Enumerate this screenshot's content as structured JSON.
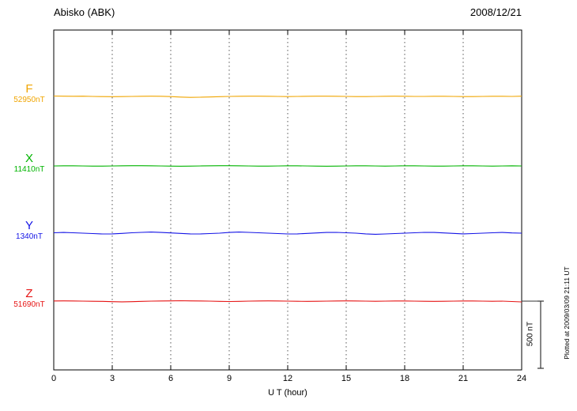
{
  "header": {
    "station": "Abisko (ABK)",
    "date": "2008/12/21"
  },
  "axis": {
    "xlabel": "U T (hour)"
  },
  "scalebar": {
    "label": "500 nT"
  },
  "footer_note": "Plotted at 2009/03/09 21:11 UT",
  "chart_data": {
    "type": "line",
    "title": "Abisko (ABK)",
    "date": "2008/12/21",
    "xlabel": "U T (hour)",
    "x_start_hour": 0,
    "x_end_hour": 24,
    "x_step_hours": 0.5,
    "x_ticks": [
      0,
      3,
      6,
      9,
      12,
      15,
      18,
      21,
      24
    ],
    "scale_bar_nT": 500,
    "grid": "dotted-vertical",
    "series": [
      {
        "name": "F",
        "baseline_label": "52950nT",
        "baseline_nT": 52950,
        "color": "#f0a500",
        "offsets_nT": [
          3,
          2,
          1,
          2,
          0,
          -1,
          -2,
          -1,
          0,
          1,
          2,
          1,
          -1,
          -5,
          -7,
          -6,
          -4,
          -2,
          0,
          1,
          2,
          2,
          1,
          0,
          -1,
          0,
          1,
          2,
          2,
          1,
          0,
          -1,
          -1,
          0,
          1,
          2,
          1,
          0,
          0,
          1,
          1,
          0,
          -1,
          -1,
          0,
          1,
          1,
          0,
          2
        ]
      },
      {
        "name": "X",
        "baseline_label": "11410nT",
        "baseline_nT": 11410,
        "color": "#00b400",
        "offsets_nT": [
          0,
          1,
          1,
          0,
          -1,
          -1,
          0,
          1,
          2,
          2,
          1,
          0,
          -1,
          -2,
          -1,
          0,
          1,
          2,
          2,
          1,
          0,
          -1,
          -1,
          0,
          1,
          1,
          0,
          -1,
          -2,
          -1,
          0,
          1,
          1,
          0,
          -1,
          0,
          1,
          1,
          0,
          -1,
          -1,
          0,
          1,
          1,
          0,
          -1,
          0,
          1,
          0
        ]
      },
      {
        "name": "Y",
        "baseline_label": "1340nT",
        "baseline_nT": 1340,
        "color": "#1414e6",
        "offsets_nT": [
          3,
          5,
          3,
          0,
          -3,
          -6,
          -5,
          -2,
          3,
          6,
          8,
          5,
          2,
          -2,
          -5,
          -6,
          -3,
          0,
          5,
          8,
          6,
          3,
          0,
          -3,
          -6,
          -5,
          -2,
          2,
          5,
          6,
          3,
          0,
          -5,
          -8,
          -6,
          -3,
          0,
          3,
          6,
          5,
          2,
          -2,
          -5,
          -3,
          0,
          3,
          5,
          2,
          0
        ]
      },
      {
        "name": "Z",
        "baseline_label": "51690nT",
        "baseline_nT": 51690,
        "color": "#e61414",
        "offsets_nT": [
          1,
          2,
          1,
          0,
          -1,
          -2,
          -4,
          -5,
          -4,
          -2,
          0,
          1,
          2,
          3,
          2,
          1,
          0,
          -2,
          -3,
          -2,
          0,
          1,
          2,
          1,
          0,
          -1,
          -2,
          -1,
          0,
          1,
          2,
          1,
          0,
          -1,
          0,
          1,
          1,
          0,
          -1,
          -2,
          -1,
          0,
          1,
          1,
          0,
          -1,
          0,
          -3,
          -6
        ]
      }
    ]
  }
}
